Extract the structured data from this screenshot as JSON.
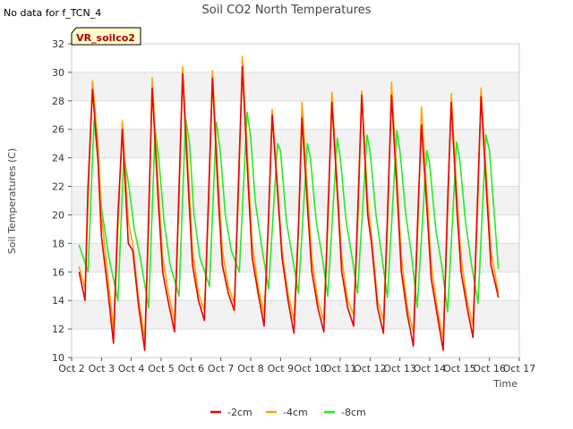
{
  "note": "No data for f_TCN_4",
  "chart_data": {
    "type": "line",
    "title": "Soil CO2 North Temperatures",
    "xlabel": "Time",
    "ylabel": "Soil Temperatures (C)",
    "badge": "VR_soilco2",
    "xlim": [
      2.0,
      17.0
    ],
    "ylim": [
      10,
      32
    ],
    "x_ticks": [
      {
        "v": 2,
        "label": "Oct 2"
      },
      {
        "v": 3,
        "label": "Oct 3"
      },
      {
        "v": 4,
        "label": "Oct 4"
      },
      {
        "v": 5,
        "label": "Oct 5"
      },
      {
        "v": 6,
        "label": "Oct 6"
      },
      {
        "v": 7,
        "label": "Oct 7"
      },
      {
        "v": 8,
        "label": "Oct 8"
      },
      {
        "v": 9,
        "label": "Oct 9"
      },
      {
        "v": 10,
        "label": "Oct 10"
      },
      {
        "v": 11,
        "label": "Oct 11"
      },
      {
        "v": 12,
        "label": "Oct 12"
      },
      {
        "v": 13,
        "label": "Oct 13"
      },
      {
        "v": 14,
        "label": "Oct 14"
      },
      {
        "v": 15,
        "label": "Oct 15"
      },
      {
        "v": 16,
        "label": "Oct 16"
      },
      {
        "v": 17,
        "label": "Oct 17"
      }
    ],
    "y_ticks": [
      10,
      12,
      14,
      16,
      18,
      20,
      22,
      24,
      26,
      28,
      30,
      32
    ],
    "grid": "horizontal alternating bands",
    "legend": "bottom-center",
    "series": [
      {
        "name": "-2cm",
        "color": "#ee0000",
        "x": [
          2.25,
          2.45,
          2.55,
          2.7,
          2.88,
          3.0,
          3.2,
          3.4,
          3.55,
          3.7,
          3.9,
          4.05,
          4.25,
          4.45,
          4.58,
          4.7,
          4.9,
          5.05,
          5.25,
          5.45,
          5.6,
          5.72,
          5.92,
          6.05,
          6.25,
          6.45,
          6.6,
          6.72,
          6.92,
          7.05,
          7.25,
          7.45,
          7.6,
          7.72,
          7.92,
          8.05,
          8.25,
          8.45,
          8.6,
          8.72,
          8.92,
          9.05,
          9.25,
          9.45,
          9.6,
          9.72,
          9.92,
          10.05,
          10.25,
          10.45,
          10.6,
          10.72,
          10.92,
          11.05,
          11.25,
          11.45,
          11.6,
          11.72,
          11.92,
          12.05,
          12.25,
          12.45,
          12.6,
          12.72,
          12.92,
          13.05,
          13.25,
          13.45,
          13.6,
          13.72,
          13.92,
          14.05,
          14.25,
          14.45,
          14.6,
          14.72,
          14.92,
          15.05,
          15.25,
          15.45,
          15.6,
          15.72,
          15.92,
          16.05,
          16.3
        ],
        "y": [
          16.0,
          14.0,
          22.0,
          28.8,
          24.0,
          18.5,
          15.0,
          11.0,
          20.0,
          26.0,
          18.0,
          17.5,
          13.5,
          10.5,
          20.0,
          28.9,
          21.0,
          16.0,
          13.8,
          11.8,
          22.0,
          29.9,
          21.5,
          16.5,
          14.0,
          12.6,
          22.0,
          29.6,
          21.0,
          16.5,
          14.5,
          13.3,
          23.0,
          30.4,
          22.0,
          17.0,
          14.5,
          12.2,
          20.0,
          27.0,
          21.0,
          17.0,
          14.0,
          11.7,
          19.0,
          26.8,
          20.0,
          16.0,
          13.5,
          11.8,
          21.0,
          27.9,
          21.0,
          16.0,
          13.5,
          12.2,
          21.0,
          28.4,
          20.0,
          18.0,
          13.5,
          11.7,
          21.0,
          28.4,
          21.0,
          16.0,
          13.0,
          10.8,
          20.0,
          26.3,
          20.0,
          15.5,
          13.0,
          10.5,
          21.0,
          27.9,
          20.0,
          16.0,
          13.5,
          11.4,
          21.0,
          28.3,
          21.0,
          16.5,
          14.2
        ]
      },
      {
        "name": "-4cm",
        "color": "#ffa500",
        "x": [
          2.25,
          2.45,
          2.55,
          2.7,
          2.88,
          3.0,
          3.2,
          3.4,
          3.55,
          3.7,
          3.9,
          4.05,
          4.25,
          4.45,
          4.58,
          4.7,
          4.9,
          5.05,
          5.25,
          5.45,
          5.6,
          5.72,
          5.92,
          6.05,
          6.25,
          6.45,
          6.6,
          6.72,
          6.92,
          7.05,
          7.25,
          7.45,
          7.6,
          7.72,
          7.92,
          8.05,
          8.25,
          8.45,
          8.6,
          8.72,
          8.92,
          9.05,
          9.25,
          9.45,
          9.6,
          9.72,
          9.92,
          10.05,
          10.25,
          10.45,
          10.6,
          10.72,
          10.92,
          11.05,
          11.25,
          11.45,
          11.6,
          11.72,
          11.92,
          12.05,
          12.25,
          12.45,
          12.6,
          12.72,
          12.92,
          13.05,
          13.25,
          13.45,
          13.6,
          13.72,
          13.92,
          14.05,
          14.25,
          14.45,
          14.6,
          14.72,
          14.92,
          15.05,
          15.25,
          15.45,
          15.6,
          15.72,
          15.92,
          16.05,
          16.3
        ],
        "y": [
          16.4,
          14.8,
          21.0,
          29.4,
          25.0,
          20.0,
          16.0,
          12.0,
          19.0,
          26.6,
          19.5,
          18.0,
          14.0,
          11.3,
          19.0,
          29.6,
          22.0,
          17.0,
          14.5,
          12.5,
          21.0,
          30.4,
          22.5,
          17.5,
          14.5,
          13.3,
          21.0,
          30.1,
          22.0,
          17.5,
          15.0,
          13.8,
          22.0,
          31.1,
          23.0,
          18.0,
          15.0,
          13.0,
          19.5,
          27.4,
          21.5,
          17.5,
          14.5,
          12.6,
          19.0,
          27.9,
          21.0,
          17.0,
          14.0,
          12.6,
          20.0,
          28.6,
          21.5,
          17.0,
          14.0,
          13.0,
          20.0,
          28.7,
          21.0,
          18.5,
          14.0,
          12.6,
          20.0,
          29.3,
          22.0,
          17.0,
          13.5,
          11.8,
          19.0,
          27.6,
          21.0,
          16.5,
          13.5,
          11.3,
          20.0,
          28.5,
          21.0,
          17.0,
          14.0,
          12.3,
          20.0,
          28.9,
          22.0,
          17.5,
          14.5
        ]
      },
      {
        "name": "-8cm",
        "color": "#22ee22",
        "x": [
          2.25,
          2.55,
          2.75,
          2.88,
          3.0,
          3.25,
          3.55,
          3.75,
          3.92,
          4.1,
          4.3,
          4.58,
          4.8,
          4.92,
          5.1,
          5.3,
          5.6,
          5.82,
          5.95,
          6.1,
          6.3,
          6.62,
          6.85,
          6.98,
          7.15,
          7.35,
          7.62,
          7.88,
          8.0,
          8.15,
          8.35,
          8.6,
          8.9,
          9.0,
          9.2,
          9.4,
          9.6,
          9.9,
          10.0,
          10.2,
          10.4,
          10.58,
          10.9,
          11.0,
          11.2,
          11.4,
          11.58,
          11.9,
          12.0,
          12.2,
          12.4,
          12.58,
          12.9,
          13.0,
          13.2,
          13.4,
          13.58,
          13.9,
          14.0,
          14.2,
          14.4,
          14.6,
          14.9,
          15.0,
          15.2,
          15.4,
          15.62,
          15.88,
          16.0,
          16.3
        ],
        "y": [
          17.9,
          16.0,
          26.6,
          24.0,
          20.5,
          17.0,
          14.0,
          24.2,
          22.0,
          19.0,
          17.0,
          13.5,
          26.0,
          24.0,
          19.5,
          16.5,
          14.3,
          26.8,
          25.0,
          20.0,
          17.0,
          15.0,
          26.5,
          24.5,
          20.0,
          17.5,
          16.0,
          27.2,
          25.5,
          21.0,
          18.0,
          14.8,
          25.0,
          24.5,
          19.5,
          17.0,
          14.5,
          25.0,
          24.0,
          19.5,
          17.0,
          14.3,
          25.4,
          24.0,
          19.5,
          17.0,
          14.5,
          25.6,
          24.5,
          20.0,
          17.0,
          14.2,
          25.9,
          24.5,
          20.0,
          17.0,
          13.5,
          24.5,
          23.5,
          19.0,
          16.5,
          13.2,
          25.1,
          24.0,
          19.5,
          16.5,
          13.8,
          25.6,
          24.5,
          16.2
        ]
      }
    ]
  }
}
